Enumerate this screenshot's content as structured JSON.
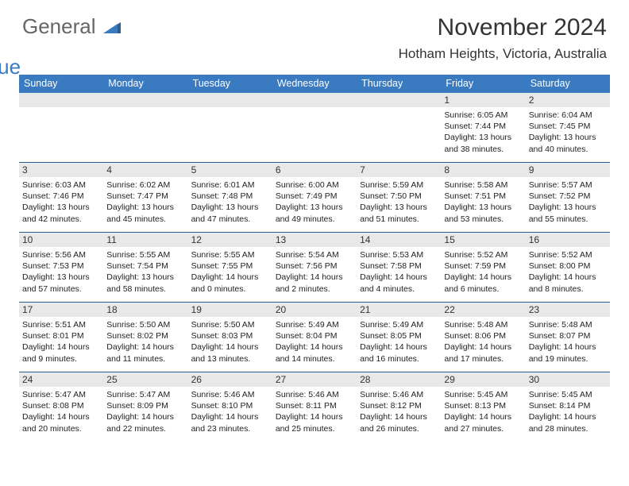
{
  "logo": {
    "word1": "General",
    "word2": "Blue"
  },
  "title": "November 2024",
  "location": "Hotham Heights, Victoria, Australia",
  "colors": {
    "header_bg": "#3a7ac0",
    "header_text": "#ffffff",
    "daynum_bg": "#e8e8e8",
    "border": "#2e5d8f",
    "title_color": "#333333",
    "body_text": "#222222",
    "logo_gray": "#666666",
    "logo_blue": "#3a7ac0"
  },
  "typography": {
    "title_fontsize": 30,
    "location_fontsize": 17,
    "dow_fontsize": 12.5,
    "daynum_fontsize": 12,
    "info_fontsize": 10.5
  },
  "dow": [
    "Sunday",
    "Monday",
    "Tuesday",
    "Wednesday",
    "Thursday",
    "Friday",
    "Saturday"
  ],
  "weeks": [
    [
      null,
      null,
      null,
      null,
      null,
      {
        "n": "1",
        "sunrise": "6:05 AM",
        "sunset": "7:44 PM",
        "dlh": "13",
        "dlm": "38"
      },
      {
        "n": "2",
        "sunrise": "6:04 AM",
        "sunset": "7:45 PM",
        "dlh": "13",
        "dlm": "40"
      }
    ],
    [
      {
        "n": "3",
        "sunrise": "6:03 AM",
        "sunset": "7:46 PM",
        "dlh": "13",
        "dlm": "42"
      },
      {
        "n": "4",
        "sunrise": "6:02 AM",
        "sunset": "7:47 PM",
        "dlh": "13",
        "dlm": "45"
      },
      {
        "n": "5",
        "sunrise": "6:01 AM",
        "sunset": "7:48 PM",
        "dlh": "13",
        "dlm": "47"
      },
      {
        "n": "6",
        "sunrise": "6:00 AM",
        "sunset": "7:49 PM",
        "dlh": "13",
        "dlm": "49"
      },
      {
        "n": "7",
        "sunrise": "5:59 AM",
        "sunset": "7:50 PM",
        "dlh": "13",
        "dlm": "51"
      },
      {
        "n": "8",
        "sunrise": "5:58 AM",
        "sunset": "7:51 PM",
        "dlh": "13",
        "dlm": "53"
      },
      {
        "n": "9",
        "sunrise": "5:57 AM",
        "sunset": "7:52 PM",
        "dlh": "13",
        "dlm": "55"
      }
    ],
    [
      {
        "n": "10",
        "sunrise": "5:56 AM",
        "sunset": "7:53 PM",
        "dlh": "13",
        "dlm": "57"
      },
      {
        "n": "11",
        "sunrise": "5:55 AM",
        "sunset": "7:54 PM",
        "dlh": "13",
        "dlm": "58"
      },
      {
        "n": "12",
        "sunrise": "5:55 AM",
        "sunset": "7:55 PM",
        "dlh": "14",
        "dlm": "0"
      },
      {
        "n": "13",
        "sunrise": "5:54 AM",
        "sunset": "7:56 PM",
        "dlh": "14",
        "dlm": "2"
      },
      {
        "n": "14",
        "sunrise": "5:53 AM",
        "sunset": "7:58 PM",
        "dlh": "14",
        "dlm": "4"
      },
      {
        "n": "15",
        "sunrise": "5:52 AM",
        "sunset": "7:59 PM",
        "dlh": "14",
        "dlm": "6"
      },
      {
        "n": "16",
        "sunrise": "5:52 AM",
        "sunset": "8:00 PM",
        "dlh": "14",
        "dlm": "8"
      }
    ],
    [
      {
        "n": "17",
        "sunrise": "5:51 AM",
        "sunset": "8:01 PM",
        "dlh": "14",
        "dlm": "9"
      },
      {
        "n": "18",
        "sunrise": "5:50 AM",
        "sunset": "8:02 PM",
        "dlh": "14",
        "dlm": "11"
      },
      {
        "n": "19",
        "sunrise": "5:50 AM",
        "sunset": "8:03 PM",
        "dlh": "14",
        "dlm": "13"
      },
      {
        "n": "20",
        "sunrise": "5:49 AM",
        "sunset": "8:04 PM",
        "dlh": "14",
        "dlm": "14"
      },
      {
        "n": "21",
        "sunrise": "5:49 AM",
        "sunset": "8:05 PM",
        "dlh": "14",
        "dlm": "16"
      },
      {
        "n": "22",
        "sunrise": "5:48 AM",
        "sunset": "8:06 PM",
        "dlh": "14",
        "dlm": "17"
      },
      {
        "n": "23",
        "sunrise": "5:48 AM",
        "sunset": "8:07 PM",
        "dlh": "14",
        "dlm": "19"
      }
    ],
    [
      {
        "n": "24",
        "sunrise": "5:47 AM",
        "sunset": "8:08 PM",
        "dlh": "14",
        "dlm": "20"
      },
      {
        "n": "25",
        "sunrise": "5:47 AM",
        "sunset": "8:09 PM",
        "dlh": "14",
        "dlm": "22"
      },
      {
        "n": "26",
        "sunrise": "5:46 AM",
        "sunset": "8:10 PM",
        "dlh": "14",
        "dlm": "23"
      },
      {
        "n": "27",
        "sunrise": "5:46 AM",
        "sunset": "8:11 PM",
        "dlh": "14",
        "dlm": "25"
      },
      {
        "n": "28",
        "sunrise": "5:46 AM",
        "sunset": "8:12 PM",
        "dlh": "14",
        "dlm": "26"
      },
      {
        "n": "29",
        "sunrise": "5:45 AM",
        "sunset": "8:13 PM",
        "dlh": "14",
        "dlm": "27"
      },
      {
        "n": "30",
        "sunrise": "5:45 AM",
        "sunset": "8:14 PM",
        "dlh": "14",
        "dlm": "28"
      }
    ]
  ],
  "labels": {
    "sunrise_prefix": "Sunrise: ",
    "sunset_prefix": "Sunset: ",
    "daylight_prefix": "Daylight: ",
    "hours_word": " hours",
    "and_word": "and ",
    "minutes_word": " minutes."
  }
}
